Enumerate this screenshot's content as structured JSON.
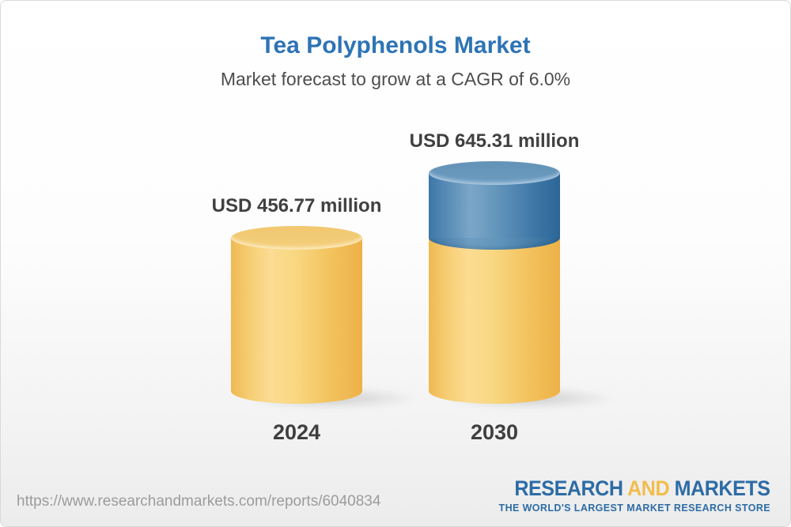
{
  "title": "Tea Polyphenols Market",
  "subtitle": "Market forecast to grow at a CAGR of 6.0%",
  "chart_data": {
    "type": "bar",
    "title": "Tea Polyphenols Market",
    "subtitle": "Market forecast to grow at a CAGR of 6.0%",
    "categories": [
      "2024",
      "2030"
    ],
    "values": [
      456.77,
      645.31
    ],
    "unit": "USD million",
    "value_labels": [
      "USD 456.77 million",
      "USD 645.31 million"
    ],
    "cagr_percent": 6.0,
    "orientation": "vertical",
    "legend": "none",
    "grid": "off",
    "style": "3d-cylinder",
    "colors": {
      "base_segment": "#F5C868",
      "growth_segment": "#4A80AC",
      "title_text": "#2E74B5",
      "label_text": "#404040"
    }
  },
  "bars": [
    {
      "year": "2024",
      "value_label": "USD 456.77 million"
    },
    {
      "year": "2030",
      "value_label": "USD 645.31 million"
    }
  ],
  "footer": {
    "url": "https://www.researchandmarkets.com/reports/6040834",
    "logo": {
      "word1": "RESEARCH",
      "word2": "AND",
      "word3": "MARKETS",
      "tagline": "THE WORLD'S LARGEST MARKET RESEARCH STORE",
      "blue": "#2D6CA5",
      "yellow": "#F2BD4D"
    }
  }
}
